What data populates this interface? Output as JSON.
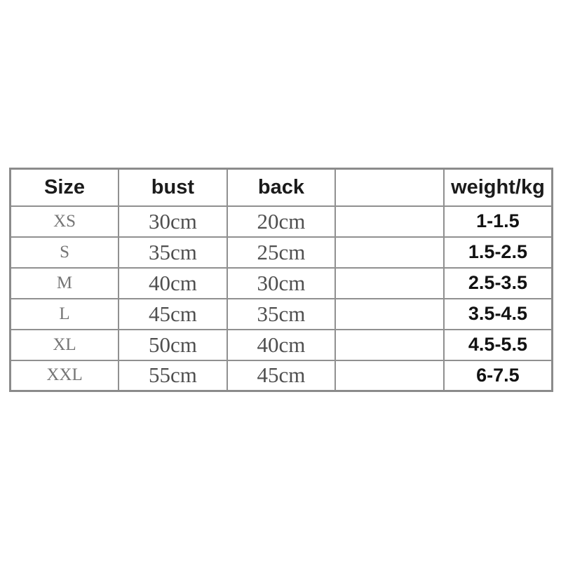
{
  "page": {
    "background": "#ffffff"
  },
  "colors": {
    "border_outer": "#8b8b8b",
    "border_inner": "#909090",
    "header_text": "#1b1b1b",
    "size_text": "#757575",
    "measure_text": "#4f4f4f",
    "weight_text": "#121212"
  },
  "table": {
    "headers": {
      "size": "Size",
      "bust": "bust",
      "back": "back",
      "extra": "",
      "weight": "weight/kg"
    },
    "rows": [
      {
        "size": "XS",
        "bust": "30cm",
        "back": "20cm",
        "extra": "",
        "weight": "1-1.5"
      },
      {
        "size": "S",
        "bust": "35cm",
        "back": "25cm",
        "extra": "",
        "weight": "1.5-2.5"
      },
      {
        "size": "M",
        "bust": "40cm",
        "back": "30cm",
        "extra": "",
        "weight": "2.5-3.5"
      },
      {
        "size": "L",
        "bust": "45cm",
        "back": "35cm",
        "extra": "",
        "weight": "3.5-4.5"
      },
      {
        "size": "XL",
        "bust": "50cm",
        "back": "40cm",
        "extra": "",
        "weight": "4.5-5.5"
      },
      {
        "size": "XXL",
        "bust": "55cm",
        "back": "45cm",
        "extra": "",
        "weight": "6-7.5"
      }
    ]
  },
  "chart_data": {
    "type": "table",
    "title": "",
    "columns": [
      "Size",
      "bust",
      "back",
      "",
      "weight/kg"
    ],
    "rows": [
      [
        "XS",
        "30cm",
        "20cm",
        "",
        "1-1.5"
      ],
      [
        "S",
        "35cm",
        "25cm",
        "",
        "1.5-2.5"
      ],
      [
        "M",
        "40cm",
        "30cm",
        "",
        "2.5-3.5"
      ],
      [
        "L",
        "45cm",
        "35cm",
        "",
        "3.5-4.5"
      ],
      [
        "XL",
        "50cm",
        "40cm",
        "",
        "4.5-5.5"
      ],
      [
        "XXL",
        "55cm",
        "45cm",
        "",
        "6-7.5"
      ]
    ]
  }
}
